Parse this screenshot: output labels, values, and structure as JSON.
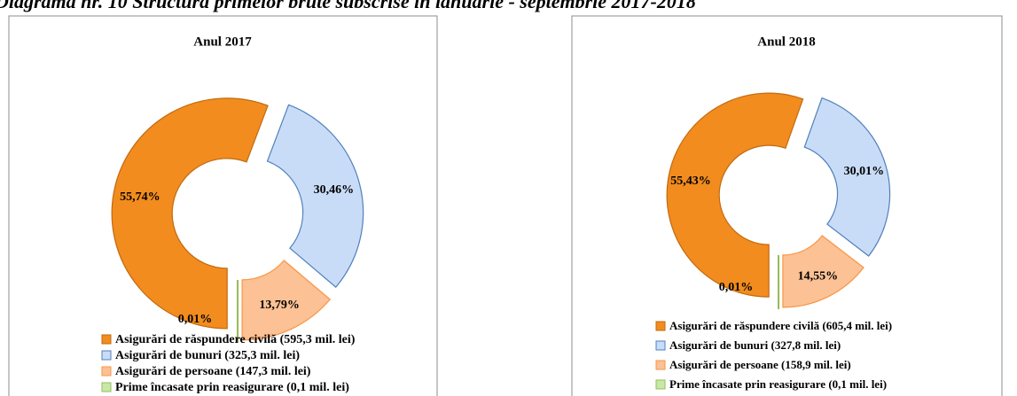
{
  "title": "Diagrama nr. 10 Structura primelor brute subscrise în ianuarie - septembrie 2017-2018",
  "chart_data": [
    {
      "type": "pie",
      "donut": true,
      "title": "Anul 2017",
      "categories": [
        "Asigurări de răspundere civilă (595,3 mil. lei)",
        "Asigurări de bunuri (325,3 mil. lei)",
        "Asigurări de persoane (147,3  mil. lei)",
        "Prime încasate prin reasigurare (0,1 mil. lei)"
      ],
      "values": [
        55.74,
        30.46,
        13.79,
        0.01
      ],
      "value_labels": [
        "55,74%",
        "30,46%",
        "13,79%",
        "0,01%"
      ],
      "colors": [
        "#f28c1e",
        "#c9dcf7",
        "#fcc194",
        "#c6e8a8"
      ]
    },
    {
      "type": "pie",
      "donut": true,
      "title": "Anul  2018",
      "categories": [
        "Asigurări de răspundere civilă (605,4 mil. lei)",
        "Asigurări de bunuri (327,8 mil. lei)",
        "Asigurări de persoane (158,9  mil. lei)",
        "Prime încasate prin reasigurare (0,1 mil. lei)"
      ],
      "values": [
        55.43,
        30.01,
        14.55,
        0.01
      ],
      "value_labels": [
        "55,43%",
        "30,01%",
        "14,55%",
        "0,01%"
      ],
      "colors": [
        "#f28c1e",
        "#c9dcf7",
        "#fcc194",
        "#c6e8a8"
      ]
    }
  ]
}
